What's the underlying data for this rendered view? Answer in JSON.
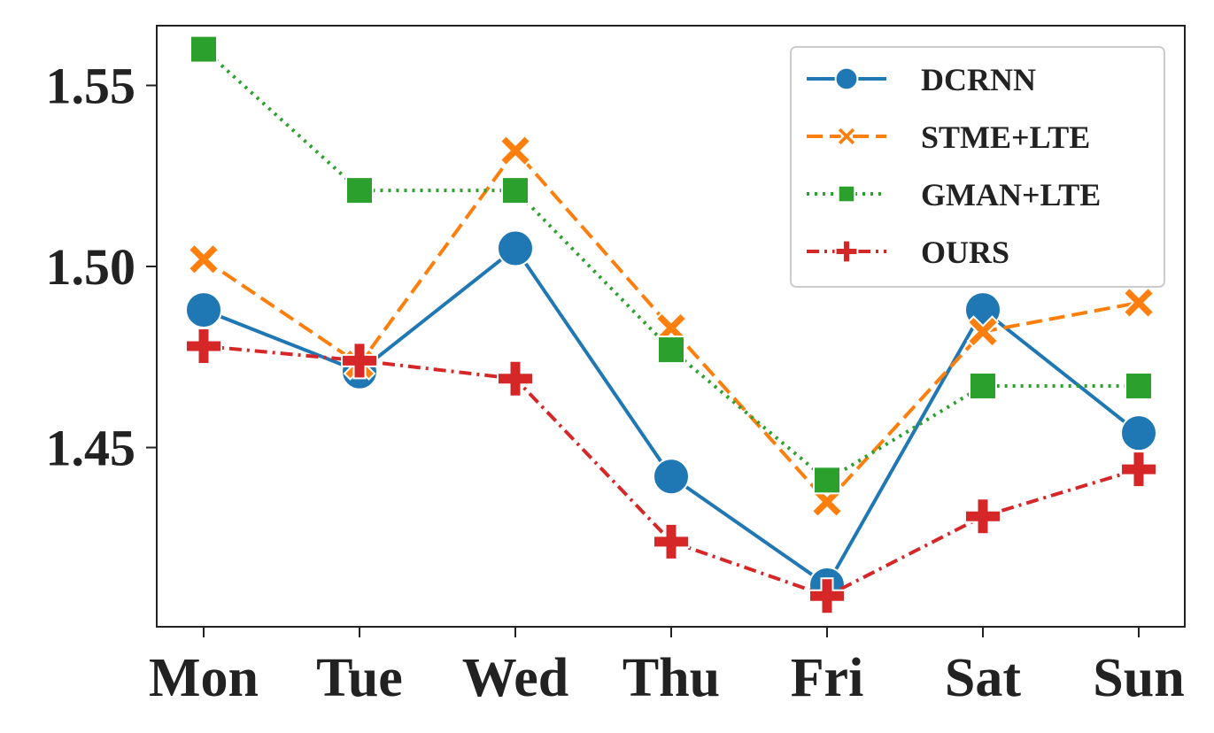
{
  "chart_data": {
    "type": "line",
    "title": "",
    "xlabel": "",
    "ylabel": "",
    "categories": [
      "Mon",
      "Tue",
      "Wed",
      "Thu",
      "Fri",
      "Sat",
      "Sun"
    ],
    "ylim": [
      1.4005,
      1.5665
    ],
    "yticks": [
      1.45,
      1.5,
      1.55
    ],
    "ytick_labels": [
      "1.45",
      "1.50",
      "1.55"
    ],
    "grid": false,
    "legend_position": "top-right",
    "series": [
      {
        "name": "DCRNN",
        "color": "#1f77b4",
        "marker": "circle",
        "linestyle": "solid",
        "values": [
          1.488,
          1.471,
          1.505,
          1.442,
          1.412,
          1.488,
          1.454
        ]
      },
      {
        "name": "STME+LTE",
        "color": "#ff7f0e",
        "marker": "x",
        "linestyle": "dashed",
        "values": [
          1.502,
          1.473,
          1.532,
          1.483,
          1.435,
          1.482,
          1.49
        ]
      },
      {
        "name": "GMAN+LTE",
        "color": "#2ca02c",
        "marker": "square",
        "linestyle": "dotted",
        "values": [
          1.56,
          1.521,
          1.521,
          1.477,
          1.441,
          1.467,
          1.467
        ]
      },
      {
        "name": "OURS",
        "color": "#d62728",
        "marker": "plus",
        "linestyle": "dashdot",
        "values": [
          1.478,
          1.474,
          1.469,
          1.424,
          1.409,
          1.431,
          1.444
        ]
      }
    ]
  }
}
